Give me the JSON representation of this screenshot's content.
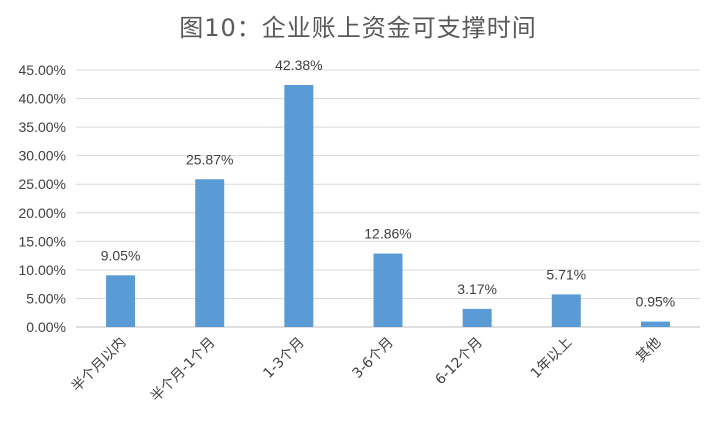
{
  "chart_data": {
    "type": "bar",
    "title": "图10：企业账上资金可支撑时间",
    "categories": [
      "半个月以内",
      "半个月-1个月",
      "1-3个月",
      "3-6个月",
      "6-12个月",
      "1年以上",
      "其他"
    ],
    "values": [
      9.05,
      25.87,
      42.38,
      12.86,
      3.17,
      5.71,
      0.95
    ],
    "data_labels": [
      "9.05%",
      "25.87%",
      "42.38%",
      "12.86%",
      "3.17%",
      "5.71%",
      "0.95%"
    ],
    "y_ticks": [
      "0.00%",
      "5.00%",
      "10.00%",
      "15.00%",
      "20.00%",
      "25.00%",
      "30.00%",
      "35.00%",
      "40.00%",
      "45.00%"
    ],
    "ylim": [
      0,
      45
    ],
    "grid": true,
    "legend": "none",
    "bar_color": "#5b9bd5"
  }
}
